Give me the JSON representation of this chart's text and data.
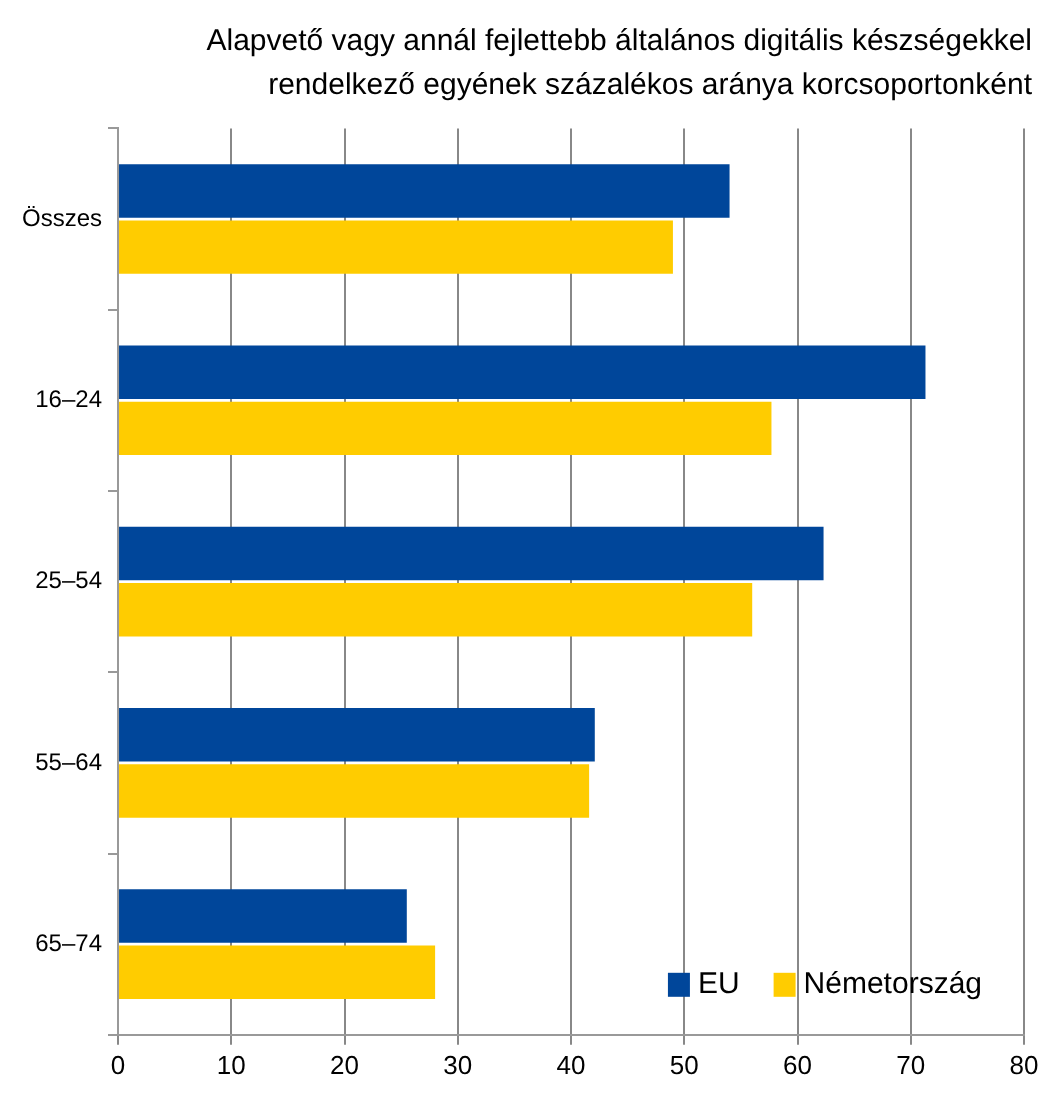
{
  "chart_data": {
    "type": "bar",
    "orientation": "horizontal",
    "title": "Alapvető vagy annál fejlettebb általános digitális készségekkel rendelkező egyének százalékos aránya korcsoportonként",
    "categories": [
      "Összes",
      "16–24",
      "25–54",
      "55–64",
      "65–74"
    ],
    "series": [
      {
        "name": "EU",
        "color": "#00469a",
        "values": [
          54,
          71.3,
          62.3,
          42.1,
          25.5
        ]
      },
      {
        "name": "Németország",
        "color": "#ffcc00",
        "values": [
          49,
          57.7,
          56,
          41.6,
          28
        ]
      }
    ],
    "xlim": [
      0,
      80
    ],
    "xticks": [
      0,
      10,
      20,
      30,
      40,
      50,
      60,
      70,
      80
    ],
    "grid": "x",
    "legend": "bottom right"
  }
}
